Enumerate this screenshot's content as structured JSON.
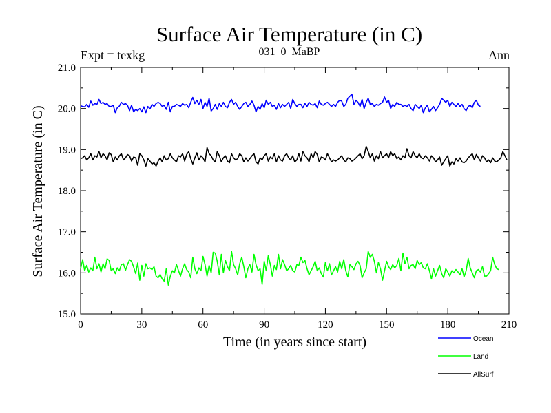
{
  "chart_data": {
    "type": "line",
    "title": "Surface Air Temperature (in C)",
    "subtitle": "031_0_MaBP",
    "expt_label": "Expt = texkg",
    "season_label": "Ann",
    "xlabel": "Time (in years since start)",
    "ylabel": "Surface Air Temperature (in C)",
    "xlim": [
      0,
      210
    ],
    "ylim": [
      15.0,
      21.0
    ],
    "x_ticks": [
      "0",
      "30",
      "60",
      "90",
      "120",
      "150",
      "180",
      "210"
    ],
    "y_ticks": [
      "15.0",
      "16.0",
      "17.0",
      "18.0",
      "19.0",
      "20.0",
      "21.0"
    ],
    "x_start": 0,
    "x_step": 1,
    "series": [
      {
        "name": "Ocean",
        "color": "#0000ff",
        "values": [
          20.07,
          20.05,
          20.04,
          20.1,
          20.03,
          20.18,
          20.08,
          20.12,
          20.1,
          20.22,
          20.12,
          20.15,
          20.1,
          20.12,
          20.05,
          20.05,
          20.08,
          19.9,
          20.02,
          20.06,
          20.15,
          20.1,
          20.12,
          20.08,
          19.95,
          20.08,
          19.92,
          19.98,
          19.95,
          20.0,
          19.92,
          20.04,
          19.9,
          20.05,
          19.99,
          20.1,
          20.05,
          20.12,
          20.15,
          20.12,
          20.05,
          20.08,
          19.98,
          20.15,
          19.92,
          20.05,
          20.05,
          20.1,
          20.08,
          20.05,
          20.12,
          20.08,
          20.1,
          20.02,
          20.15,
          20.27,
          20.12,
          20.2,
          20.1,
          20.22,
          20.0,
          20.15,
          20.05,
          20.25,
          19.94,
          20.0,
          20.1,
          19.98,
          20.12,
          20.05,
          20.15,
          20.05,
          20.02,
          20.15,
          20.22,
          20.1,
          20.15,
          20.05,
          19.98,
          20.05,
          20.12,
          20.15,
          20.05,
          20.1,
          20.18,
          20.08,
          19.92,
          20.05,
          19.98,
          20.12,
          20.02,
          20.2,
          20.1,
          20.15,
          20.05,
          20.08,
          19.98,
          20.12,
          20.02,
          20.1,
          20.05,
          20.1,
          20.15,
          20.0,
          20.22,
          20.12,
          20.05,
          20.1,
          20.1,
          20.02,
          20.12,
          20.05,
          20.15,
          20.1,
          20.08,
          20.12,
          20.02,
          20.18,
          20.1,
          20.08,
          20.12,
          20.15,
          20.1,
          20.05,
          20.1,
          20.05,
          20.15,
          20.2,
          20.18,
          20.05,
          20.1,
          20.25,
          20.3,
          20.35,
          20.1,
          20.2,
          20.15,
          20.05,
          20.22,
          20.0,
          20.15,
          20.25,
          20.1,
          20.12,
          20.05,
          20.1,
          20.08,
          20.12,
          20.15,
          20.28,
          20.15,
          20.2,
          20.0,
          20.1,
          20.05,
          20.15,
          20.1,
          20.1,
          20.05,
          20.08,
          20.05,
          20.1,
          20.0,
          19.95,
          20.1,
          20.05,
          20.0,
          20.08,
          19.9,
          20.02,
          20.08,
          19.92,
          19.98,
          20.05,
          19.95,
          20.02,
          20.1,
          20.25,
          20.2,
          20.15,
          20.2,
          20.05,
          20.15,
          20.1,
          20.05,
          20.12,
          20.05,
          20.1,
          20.0,
          19.95,
          20.05,
          20.08,
          20.02,
          20.15,
          20.2,
          20.08,
          20.05
        ]
      },
      {
        "name": "Land",
        "color": "#00ff00",
        "values": [
          16.1,
          16.32,
          16.05,
          16.18,
          16.02,
          16.12,
          16.05,
          16.38,
          16.1,
          16.22,
          16.02,
          16.22,
          16.1,
          16.34,
          16.3,
          16.05,
          16.1,
          15.98,
          16.12,
          16.05,
          16.2,
          16.22,
          16.06,
          16.2,
          16.32,
          16.28,
          16.14,
          15.98,
          16.24,
          15.82,
          16.18,
          15.92,
          16.22,
          16.1,
          16.12,
          16.08,
          16.15,
          15.92,
          15.88,
          15.96,
          15.85,
          15.8,
          16.1,
          15.7,
          15.92,
          16.05,
          16.0,
          16.2,
          16.05,
          15.92,
          16.1,
          16.22,
          16.08,
          16.02,
          15.88,
          16.38,
          16.1,
          15.98,
          16.12,
          16.05,
          16.4,
          16.2,
          15.92,
          16.18,
          16.0,
          16.5,
          16.48,
          16.28,
          15.95,
          16.45,
          16.0,
          16.3,
          16.15,
          16.05,
          16.52,
          16.2,
          16.1,
          15.95,
          16.22,
          16.38,
          16.15,
          15.88,
          16.1,
          16.2,
          16.02,
          16.45,
          16.2,
          16.05,
          16.1,
          15.72,
          16.28,
          16.05,
          16.42,
          16.2,
          15.92,
          16.18,
          16.08,
          16.45,
          16.1,
          16.32,
          16.2,
          16.05,
          16.1,
          16.18,
          16.05,
          16.02,
          16.2,
          16.18,
          16.38,
          16.25,
          16.3,
          16.1,
          15.95,
          16.05,
          16.15,
          16.28,
          16.05,
          16.12,
          15.98,
          15.9,
          16.25,
          16.05,
          16.22,
          15.95,
          16.05,
          16.15,
          16.02,
          16.28,
          16.1,
          16.32,
          16.05,
          15.9,
          16.2,
          16.15,
          16.08,
          16.22,
          16.28,
          16.18,
          15.88,
          16.0,
          16.1,
          16.52,
          16.38,
          16.45,
          16.28,
          16.0,
          16.25,
          16.1,
          15.82,
          16.05,
          16.28,
          16.15,
          16.08,
          16.2,
          16.12,
          16.18,
          16.35,
          16.05,
          16.48,
          16.22,
          16.38,
          16.1,
          16.18,
          16.2,
          16.1,
          16.3,
          16.2,
          16.25,
          16.12,
          16.1,
          16.22,
          16.05,
          15.85,
          16.1,
          15.92,
          16.05,
          16.18,
          15.98,
          15.88,
          16.1,
          16.02,
          15.92,
          16.05,
          16.0,
          16.08,
          16.02,
          15.95,
          16.1,
          15.9,
          16.05,
          16.35,
          16.12,
          16.0,
          15.88,
          16.05,
          16.08,
          16.02,
          16.15,
          15.92,
          15.92,
          15.98,
          16.05,
          16.38,
          16.2,
          16.1,
          16.08
        ]
      },
      {
        "name": "AllSurf",
        "color": "#000000",
        "values": [
          18.78,
          18.8,
          18.85,
          18.75,
          18.8,
          18.9,
          18.75,
          18.85,
          18.82,
          18.95,
          18.8,
          18.9,
          18.85,
          18.75,
          18.92,
          18.88,
          18.7,
          18.82,
          18.75,
          18.85,
          18.9,
          18.75,
          18.8,
          18.88,
          18.85,
          18.72,
          18.82,
          18.8,
          18.62,
          18.9,
          18.85,
          18.75,
          18.6,
          18.78,
          18.72,
          18.65,
          18.68,
          18.6,
          18.72,
          18.8,
          18.7,
          18.85,
          18.75,
          18.78,
          18.9,
          18.8,
          18.75,
          18.7,
          18.85,
          18.82,
          18.9,
          18.72,
          18.88,
          18.95,
          18.78,
          18.65,
          18.8,
          18.92,
          18.75,
          18.85,
          18.8,
          18.7,
          19.05,
          18.9,
          18.85,
          18.75,
          18.7,
          18.95,
          18.85,
          18.7,
          18.8,
          18.85,
          18.72,
          18.68,
          18.9,
          18.8,
          18.75,
          18.78,
          18.9,
          18.85,
          18.7,
          18.8,
          18.72,
          18.78,
          18.85,
          18.9,
          18.7,
          18.65,
          18.8,
          18.75,
          18.85,
          18.9,
          18.72,
          18.82,
          18.78,
          18.9,
          18.7,
          18.85,
          18.75,
          18.72,
          18.85,
          18.9,
          18.8,
          18.75,
          18.85,
          18.7,
          18.75,
          18.9,
          18.72,
          18.95,
          18.85,
          18.8,
          18.7,
          18.9,
          18.8,
          18.95,
          18.88,
          18.7,
          18.82,
          18.8,
          18.75,
          18.9,
          18.8,
          18.7,
          18.75,
          18.72,
          18.75,
          18.8,
          18.85,
          18.75,
          18.7,
          18.8,
          18.78,
          18.72,
          18.75,
          18.8,
          18.85,
          18.9,
          18.78,
          18.85,
          19.08,
          18.95,
          18.8,
          18.9,
          18.72,
          18.85,
          18.78,
          18.95,
          18.8,
          18.85,
          18.9,
          18.8,
          18.95,
          18.85,
          18.9,
          18.78,
          18.82,
          18.75,
          18.85,
          18.8,
          19.02,
          18.85,
          18.8,
          18.95,
          18.85,
          18.8,
          18.9,
          18.8,
          18.78,
          18.85,
          18.8,
          18.72,
          18.85,
          18.8,
          18.7,
          18.75,
          18.82,
          18.62,
          18.7,
          18.78,
          18.85,
          18.6,
          18.7,
          18.65,
          18.78,
          18.72,
          18.8,
          18.7,
          18.68,
          18.72,
          18.8,
          18.85,
          18.9,
          18.75,
          18.88,
          18.8,
          18.72,
          18.85,
          18.8,
          18.7,
          18.75,
          18.68,
          18.8,
          18.72,
          18.7,
          18.75,
          18.8,
          18.95,
          18.85,
          18.75
        ]
      }
    ]
  }
}
